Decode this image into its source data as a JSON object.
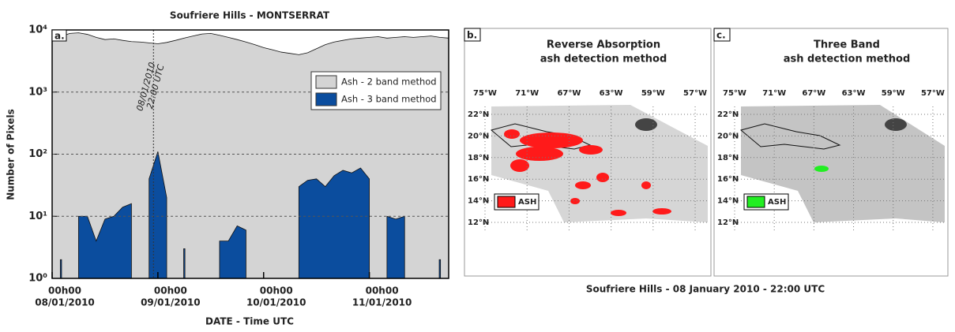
{
  "chart_data": {
    "type": "area",
    "title": "Soufriere Hills - MONTSERRAT",
    "xlabel": "DATE - Time UTC",
    "ylabel": "Number of Pixels",
    "panel_label": "a.",
    "log_y": true,
    "grid": true,
    "legend_position": "upper right",
    "x": [
      0,
      2,
      4,
      6,
      8,
      10,
      12,
      14,
      16,
      18,
      20,
      22,
      24,
      26,
      28,
      30,
      32,
      34,
      36,
      38,
      40,
      42,
      44,
      46,
      48,
      50,
      52,
      54,
      56,
      58,
      60,
      62,
      64,
      66,
      68,
      70,
      72,
      74,
      76,
      78,
      80,
      82,
      84,
      86,
      88,
      90
    ],
    "series": [
      {
        "name": "Ash - 2 band method",
        "color": "#d4d4d4",
        "values": [
          7000,
          7800,
          8800,
          9000,
          8500,
          7600,
          7000,
          7200,
          6800,
          6500,
          6400,
          6200,
          6000,
          6300,
          6800,
          7400,
          8000,
          8600,
          8800,
          8200,
          7600,
          7000,
          6400,
          5800,
          5200,
          4800,
          4400,
          4200,
          4000,
          4300,
          5000,
          5800,
          6400,
          6800,
          7200,
          7400,
          7600,
          7800,
          7400,
          7600,
          7800,
          7600,
          7800,
          8000,
          7600,
          7400
        ]
      },
      {
        "name": "Ash - 3 band method",
        "color": "#0b4d9e",
        "values": [
          null,
          2,
          null,
          10,
          10,
          4,
          9,
          10,
          14,
          16,
          null,
          40,
          110,
          20,
          null,
          3,
          null,
          null,
          null,
          4,
          4,
          7,
          6,
          null,
          null,
          null,
          null,
          null,
          30,
          38,
          40,
          30,
          45,
          55,
          50,
          60,
          40,
          null,
          10,
          9,
          10,
          null,
          null,
          null,
          2,
          null
        ]
      }
    ],
    "xlim": [
      0,
      90
    ],
    "xticks": [
      {
        "value": 0,
        "label": "00h00",
        "date": "08/01/2010"
      },
      {
        "value": 24,
        "label": "00h00",
        "date": "09/01/2010"
      },
      {
        "value": 48,
        "label": "00h00",
        "date": "10/01/2010"
      },
      {
        "value": 72,
        "label": "00h00",
        "date": "11/01/2010"
      }
    ],
    "ylim": [
      1,
      10000
    ],
    "yticks": [
      {
        "value": 1,
        "label": "10⁰"
      },
      {
        "value": 10,
        "label": "10¹"
      },
      {
        "value": 100,
        "label": "10²"
      },
      {
        "value": 1000,
        "label": "10³"
      },
      {
        "value": 10000,
        "label": "10⁴"
      }
    ],
    "annotation": {
      "x": 23,
      "lines": [
        "08/01/2010",
        "22:00 UTC"
      ]
    }
  },
  "maps": {
    "panels": [
      {
        "label": "b.",
        "title": [
          "Reverse Absorption",
          "ash detection method"
        ],
        "legend": "ASH",
        "legend_color": "#ff1a1a"
      },
      {
        "label": "c.",
        "title": [
          "Three Band",
          "ash detection method"
        ],
        "legend": "ASH",
        "legend_color": "#22ee22"
      }
    ],
    "lon_labels": [
      "75°W",
      "71°W",
      "67°W",
      "63°W",
      "59°W",
      "57°W"
    ],
    "lat_labels": [
      "22°N",
      "20°N",
      "18°N",
      "16°N",
      "14°N",
      "12°N"
    ],
    "caption": "Soufriere Hills - 08 January 2010 - 22:00 UTC"
  }
}
